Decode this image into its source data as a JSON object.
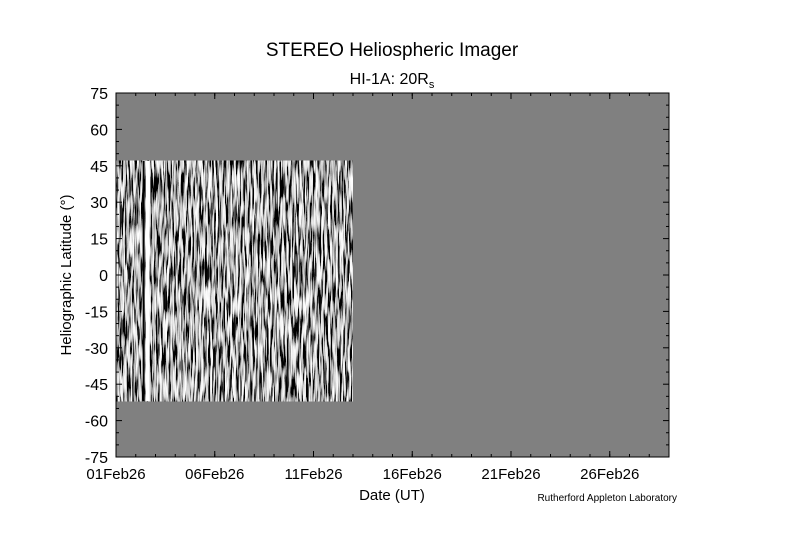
{
  "chart_data": {
    "type": "heatmap",
    "title": "STEREO Heliospheric Imager",
    "subtitle": {
      "main": "HI-1A: 20R",
      "sub": "s"
    },
    "xlabel": "Date (UT)",
    "ylabel": "Heliographic Latitude (°)",
    "credit": "Rutherford Appleton Laboratory",
    "x_range": [
      "2026-02-01",
      "2026-02-29"
    ],
    "x_ticks": [
      {
        "date": "2026-02-01",
        "label": "01Feb26"
      },
      {
        "date": "2026-02-06",
        "label": "06Feb26"
      },
      {
        "date": "2026-02-11",
        "label": "11Feb26"
      },
      {
        "date": "2026-02-16",
        "label": "16Feb26"
      },
      {
        "date": "2026-02-21",
        "label": "21Feb26"
      },
      {
        "date": "2026-02-26",
        "label": "26Feb26"
      }
    ],
    "ylim": [
      -75,
      75
    ],
    "y_ticks": [
      75,
      60,
      45,
      30,
      15,
      0,
      -15,
      -30,
      -45,
      -60,
      -75
    ],
    "y_tick_labels": [
      "75",
      "60",
      "45",
      "30",
      "15",
      "0",
      "-15",
      "-30",
      "-45",
      "-60",
      "-75"
    ],
    "data_extent": {
      "start": "2026-02-01",
      "end": "2026-02-13",
      "lat_min": -52,
      "lat_max": 47
    },
    "gaps": [
      {
        "start": "2026-02-02.5",
        "end": "2026-02-02.7"
      }
    ],
    "no_data_color": "#808080",
    "colormap": "grayscale difference (black-white)"
  }
}
